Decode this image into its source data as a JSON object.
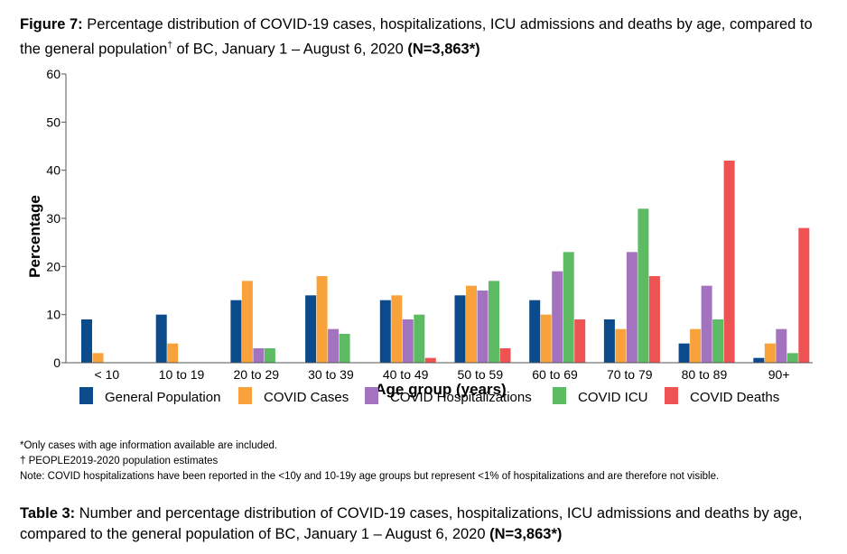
{
  "figure_caption": {
    "label": "Figure 7:",
    "text_part1": " Percentage distribution of COVID-19 cases, hospitalizations, ICU admissions and deaths by age, compared to the general population",
    "dagger": "†",
    "text_part2": " of BC, January 1 – August 6, 2020 ",
    "n_label": "(N=3,863*)"
  },
  "chart_data": {
    "type": "bar",
    "title": "",
    "xlabel": "Age group (years)",
    "ylabel": "Percentage",
    "ylim": [
      0,
      60
    ],
    "yticks": [
      "0",
      "10",
      "20",
      "30",
      "40",
      "50",
      "60"
    ],
    "ytick_values": [
      0,
      10,
      20,
      30,
      40,
      50,
      60
    ],
    "categories": [
      "< 10",
      "10 to 19",
      "20 to 29",
      "30 to 39",
      "40 to 49",
      "50 to 59",
      "60 to 69",
      "70 to 79",
      "80 to 89",
      "90+"
    ],
    "series": [
      {
        "name": "General Population",
        "color": "#0b4a8b",
        "values": [
          9,
          10,
          13,
          14,
          13,
          14,
          13,
          9,
          4,
          1
        ]
      },
      {
        "name": "COVID Cases",
        "color": "#f9a23b",
        "values": [
          2,
          4,
          17,
          18,
          14,
          16,
          10,
          7,
          7,
          4
        ]
      },
      {
        "name": "COVID Hospitalizations",
        "color": "#a373bf",
        "values": [
          0,
          0,
          3,
          7,
          9,
          15,
          19,
          23,
          16,
          7
        ]
      },
      {
        "name": "COVID ICU",
        "color": "#5dbb63",
        "values": [
          0,
          0,
          3,
          6,
          10,
          17,
          23,
          32,
          9,
          2
        ]
      },
      {
        "name": "COVID Deaths",
        "color": "#ee5253",
        "values": [
          0,
          0,
          0,
          0,
          1,
          3,
          9,
          18,
          42,
          28
        ]
      }
    ],
    "legend_position": "bottom"
  },
  "notes": {
    "line1": "*Only cases with age information available are included.",
    "line2": "† PEOPLE2019-2020 population estimates",
    "line3": "Note: COVID hospitalizations have been reported in the <10y and 10-19y age groups but represent <1% of hospitalizations and are therefore not visible."
  },
  "table_caption": {
    "label": "Table 3:",
    "text": " Number and percentage distribution of COVID-19 cases, hospitalizations, ICU admissions and deaths by age, compared to the general population of BC, January 1 – August 6, 2020 ",
    "n_label": "(N=3,863*)"
  }
}
